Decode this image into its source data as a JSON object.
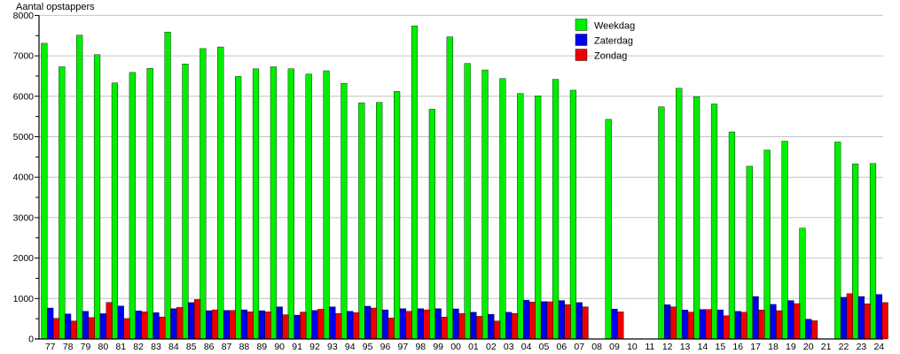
{
  "background": "#ffffff",
  "chart_data": {
    "type": "bar",
    "title": "",
    "ylabel": "Aantal opstappers",
    "xlabel": "",
    "grid": true,
    "grid_color": "#c4c4c4",
    "axis_color": "#000000",
    "legend_position": "top-right",
    "ylim": [
      0,
      8000
    ],
    "ytick_interval": 1000,
    "ytick_minor_interval": 500,
    "ytick_labels": [
      "0",
      "1000",
      "2000",
      "3000",
      "4000",
      "5000",
      "6000",
      "7000",
      "8000"
    ],
    "categories": [
      "77",
      "78",
      "79",
      "80",
      "81",
      "82",
      "83",
      "84",
      "85",
      "86",
      "87",
      "88",
      "89",
      "90",
      "91",
      "92",
      "93",
      "94",
      "95",
      "96",
      "97",
      "98",
      "99",
      "00",
      "01",
      "02",
      "03",
      "04",
      "05",
      "06",
      "07",
      "08",
      "09",
      "10",
      "11",
      "12",
      "13",
      "14",
      "15",
      "16",
      "17",
      "18",
      "19",
      "20",
      "21",
      "22",
      "23",
      "24"
    ],
    "series": [
      {
        "name": "Weekdag",
        "color": "#00ee00",
        "values": [
          7310,
          6730,
          7510,
          7030,
          6330,
          6590,
          6690,
          7590,
          6800,
          7180,
          7220,
          6490,
          6680,
          6730,
          6680,
          6550,
          6630,
          6320,
          5840,
          5850,
          6120,
          7740,
          5680,
          7470,
          6810,
          6650,
          6440,
          6070,
          6010,
          6420,
          6150,
          null,
          5430,
          null,
          null,
          5740,
          6200,
          5990,
          5810,
          5120,
          4270,
          4670,
          4890,
          2740,
          null,
          4870,
          4330,
          4340
        ]
      },
      {
        "name": "Zaterdag",
        "color": "#0000ee",
        "values": [
          765,
          620,
          685,
          625,
          815,
          695,
          650,
          750,
          900,
          700,
          705,
          720,
          700,
          795,
          590,
          705,
          795,
          685,
          810,
          720,
          750,
          750,
          750,
          745,
          660,
          610,
          660,
          960,
          925,
          950,
          900,
          null,
          740,
          null,
          null,
          845,
          715,
          730,
          720,
          685,
          1050,
          855,
          950,
          490,
          null,
          1030,
          1050,
          1100
        ]
      },
      {
        "name": "Zondag",
        "color": "#ee0000",
        "values": [
          510,
          445,
          530,
          905,
          505,
          670,
          545,
          780,
          975,
          720,
          705,
          670,
          670,
          600,
          665,
          735,
          630,
          650,
          765,
          520,
          685,
          720,
          540,
          630,
          560,
          445,
          630,
          915,
          920,
          850,
          795,
          null,
          670,
          null,
          null,
          795,
          665,
          730,
          575,
          660,
          715,
          700,
          875,
          450,
          null,
          1120,
          870,
          900
        ]
      }
    ]
  }
}
